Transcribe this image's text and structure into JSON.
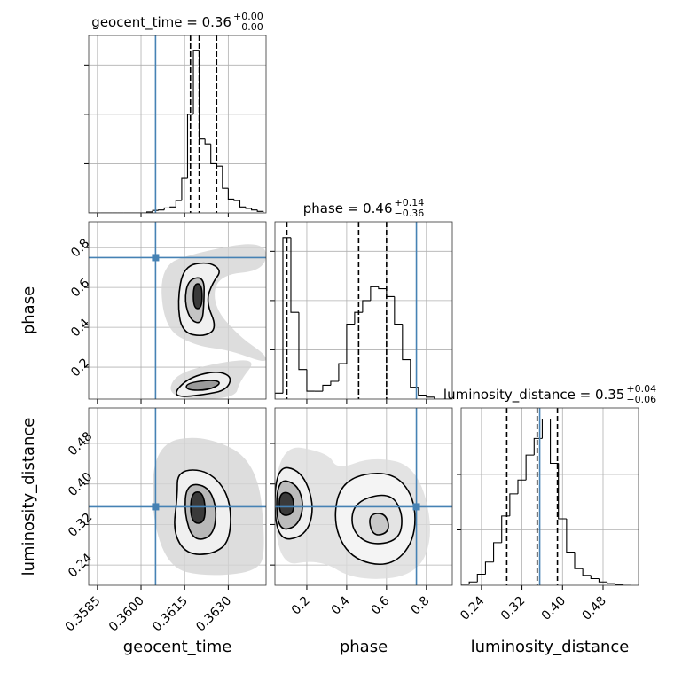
{
  "chart_data": {
    "type": "corner",
    "truth_color": "#4682b4",
    "hist_color": "#000000",
    "grid": true,
    "parameters": [
      {
        "name": "geocent_time",
        "title": "geocent_time = 0.36",
        "title_sup": "+0.00",
        "title_sub": "−0.00",
        "lim": [
          0.3582,
          0.3643
        ],
        "ticks": [
          0.3585,
          {
            "value": 0.36,
            "label": "0.3600"
          },
          0.3615,
          {
            "value": 0.363,
            "label": "0.3630"
          }
        ],
        "truth": 0.3605,
        "quantiles": [
          0.3617,
          0.362,
          0.3626
        ],
        "bins": [
          0.3582,
          0.3584,
          0.3586,
          0.3588,
          0.359,
          0.3592,
          0.3594,
          0.3596,
          0.3598,
          0.36,
          0.3602,
          0.3604,
          0.3606,
          0.3608,
          0.361,
          0.3612,
          0.3614,
          0.3616,
          0.3618,
          0.362,
          0.3622,
          0.3624,
          0.3626,
          0.3628,
          0.363,
          0.3632,
          0.3634,
          0.3636,
          0.3638,
          0.364,
          0.3642
        ],
        "counts": [
          0,
          0,
          0,
          0,
          0,
          0,
          0,
          0,
          0,
          0,
          20,
          50,
          60,
          100,
          120,
          250,
          700,
          2000,
          3300,
          1500,
          1400,
          1000,
          950,
          500,
          280,
          250,
          120,
          90,
          60,
          30
        ],
        "hist_ylim": [
          0,
          3600
        ],
        "hist_yticks": [
          1000,
          2000,
          3000
        ]
      },
      {
        "name": "phase",
        "title": "phase = 0.46",
        "title_sup": "+0.14",
        "title_sub": "−0.36",
        "lim": [
          0.04,
          0.93
        ],
        "ticks": [
          0.2,
          0.4,
          0.6,
          0.8
        ],
        "truth": 0.75,
        "quantiles": [
          0.1,
          0.46,
          0.6
        ],
        "bins": [
          0.04,
          0.08,
          0.12,
          0.16,
          0.2,
          0.24,
          0.28,
          0.32,
          0.36,
          0.4,
          0.44,
          0.48,
          0.52,
          0.56,
          0.6,
          0.64,
          0.68,
          0.72,
          0.76,
          0.8,
          0.84,
          0.88,
          0.92
        ],
        "counts": [
          30,
          820,
          440,
          150,
          40,
          40,
          70,
          90,
          180,
          380,
          440,
          500,
          570,
          560,
          520,
          380,
          200,
          60,
          20,
          10,
          0,
          0
        ],
        "hist_ylim": [
          0,
          900
        ],
        "hist_yticks": [
          250,
          500,
          750
        ]
      },
      {
        "name": "luminosity_distance",
        "title": "luminosity_distance = 0.35",
        "title_sup": "+0.04",
        "title_sub": "−0.06",
        "lim": [
          0.2,
          0.55
        ],
        "ticks": [
          0.24,
          0.32,
          {
            "value": 0.4,
            "label": "0.40"
          },
          0.48
        ],
        "truth": 0.355,
        "quantiles": [
          0.29,
          0.35,
          0.39
        ],
        "bins": [
          0.2,
          0.216,
          0.232,
          0.248,
          0.264,
          0.28,
          0.296,
          0.312,
          0.328,
          0.344,
          0.36,
          0.376,
          0.392,
          0.408,
          0.424,
          0.44,
          0.456,
          0.472,
          0.488,
          0.504,
          0.52,
          0.536
        ],
        "counts": [
          20,
          60,
          200,
          420,
          770,
          1250,
          1650,
          1900,
          2350,
          2650,
          3000,
          2200,
          1200,
          600,
          300,
          180,
          120,
          60,
          30,
          10,
          0
        ],
        "hist_ylim": [
          0,
          3200
        ],
        "hist_yticks": [
          1000,
          2000,
          3000
        ]
      }
    ],
    "panels": [
      {
        "regions": [
          {
            "fill": "#d4d4d4",
            "stroke": "none",
            "x": [
              0.36064,
              0.36186,
              0.3643,
              0.3643,
              0.36262,
              0.36247,
              0.36339,
              0.3643,
              0.3643,
              0.36308,
              0.36186,
              0.36079
            ],
            "y": [
              0.7075,
              0.774,
              0.841,
              0.685,
              0.663,
              0.507,
              0.352,
              0.2625,
              0.218,
              0.285,
              0.307,
              0.396
            ]
          },
          {
            "fill": "#d4d4d4",
            "stroke": "none",
            "x": [
              0.36095,
              0.3611,
              0.36278,
              0.364,
              0.36339,
              0.36323
            ],
            "y": [
              0.04,
              0.1646,
              0.227,
              0.24,
              0.129,
              0.04
            ]
          },
          {
            "fill": "#f0f0f0",
            "stroke": "#000000",
            "x": [
              0.36146,
              0.36232,
              0.36278,
              0.36247,
              0.36223,
              0.36262,
              0.36217,
              0.3614,
              0.36125
            ],
            "y": [
              0.7075,
              0.73,
              0.685,
              0.627,
              0.53,
              0.396,
              0.352,
              0.374,
              0.53
            ]
          },
          {
            "fill": "#c4c4c4",
            "stroke": "#000000",
            "x": [
              0.36162,
              0.36217,
              0.36217,
              0.3621,
              0.36171,
              0.36149
            ],
            "y": [
              0.641,
              0.654,
              0.53,
              0.418,
              0.432,
              0.53
            ]
          },
          {
            "fill": "#3a3a3a",
            "stroke": "#000000",
            "x": [
              0.3618,
              0.3621,
              0.3621,
              0.3618
            ],
            "y": [
              0.618,
              0.618,
              0.494,
              0.494
            ]
          },
          {
            "fill": "#f0f0f0",
            "stroke": "#000000",
            "x": [
              0.36119,
              0.36171,
              0.36262,
              0.36314,
              0.36293,
              0.36217,
              0.36125
            ],
            "y": [
              0.0845,
              0.151,
              0.182,
              0.151,
              0.0845,
              0.062,
              0.049
            ]
          },
          {
            "fill": "#9a9a9a",
            "stroke": "#000000",
            "x": [
              0.36156,
              0.36247,
              0.36278,
              0.36232,
              0.36156
            ],
            "y": [
              0.12,
              0.138,
              0.12,
              0.0845,
              0.0845
            ]
          }
        ]
      },
      {
        "regions": [
          {
            "fill": "#d4d4d4",
            "stroke": "none",
            "x": [
              0.36049,
              0.36217,
              0.364,
              0.3643,
              0.364,
              0.36217,
              0.36095,
              0.36034
            ],
            "y": [
              0.48,
              0.4975,
              0.445,
              0.27,
              0.226,
              0.2175,
              0.235,
              0.34
            ]
          },
          {
            "fill": "#f0f0f0",
            "stroke": "#000000",
            "x": [
              0.36125,
              0.36232,
              0.36308,
              0.36308,
              0.36247,
              0.36156,
              0.3611,
              0.36125
            ],
            "y": [
              0.4275,
              0.4275,
              0.375,
              0.2875,
              0.261,
              0.261,
              0.305,
              0.375
            ]
          },
          {
            "fill": "#b8b8b8",
            "stroke": "#000000",
            "x": [
              0.36156,
              0.36232,
              0.36262,
              0.36247,
              0.3618,
              0.36149
            ],
            "y": [
              0.401,
              0.396,
              0.349,
              0.296,
              0.2875,
              0.34
            ]
          },
          {
            "fill": "#3a3a3a",
            "stroke": "#000000",
            "x": [
              0.36171,
              0.36217,
              0.36223,
              0.36171
            ],
            "y": [
              0.384,
              0.384,
              0.3225,
              0.3225
            ]
          }
        ]
      },
      {
        "regions": [
          {
            "fill": "#dcdcdc",
            "stroke": "none",
            "x": [
              0.04,
              0.307,
              0.3515,
              0.5295,
              0.752,
              0.841,
              0.752,
              0.4405,
              0.2625,
              0.04
            ],
            "y": [
              0.48,
              0.4625,
              0.4275,
              0.454,
              0.436,
              0.305,
              0.2175,
              0.209,
              0.2525,
              0.235
            ]
          },
          {
            "fill": "#f0f0f0",
            "stroke": "#000000",
            "x": [
              0.04,
              0.1735,
              0.24,
              0.196,
              0.04
            ],
            "y": [
              0.436,
              0.4275,
              0.3575,
              0.296,
              0.2875
            ]
          },
          {
            "fill": "#f4f4f4",
            "stroke": "#000000",
            "x": [
              0.374,
              0.6185,
              0.743,
              0.743,
              0.6185,
              0.418,
              0.329
            ],
            "y": [
              0.41,
              0.4275,
              0.375,
              0.2875,
              0.235,
              0.2525,
              0.3225
            ]
          },
          {
            "fill": "#bcbcbc",
            "stroke": "#000000",
            "x": [
              0.049,
              0.151,
              0.187,
              0.151,
              0.049
            ],
            "y": [
              0.41,
              0.401,
              0.3575,
              0.314,
              0.3085
            ]
          },
          {
            "fill": "#e4e4e4",
            "stroke": "#000000",
            "x": [
              0.4405,
              0.6185,
              0.685,
              0.663,
              0.507,
              0.418
            ],
            "y": [
              0.366,
              0.384,
              0.34,
              0.2875,
              0.279,
              0.314
            ]
          },
          {
            "fill": "#3a3a3a",
            "stroke": "#000000",
            "x": [
              0.062,
              0.129,
              0.138,
              0.062
            ],
            "y": [
              0.384,
              0.382,
              0.34,
              0.3365
            ]
          },
          {
            "fill": "#c8c8c8",
            "stroke": "#000000",
            "x": [
              0.507,
              0.596,
              0.6185,
              0.5295
            ],
            "y": [
              0.34,
              0.3435,
              0.305,
              0.296
            ]
          }
        ]
      }
    ]
  }
}
